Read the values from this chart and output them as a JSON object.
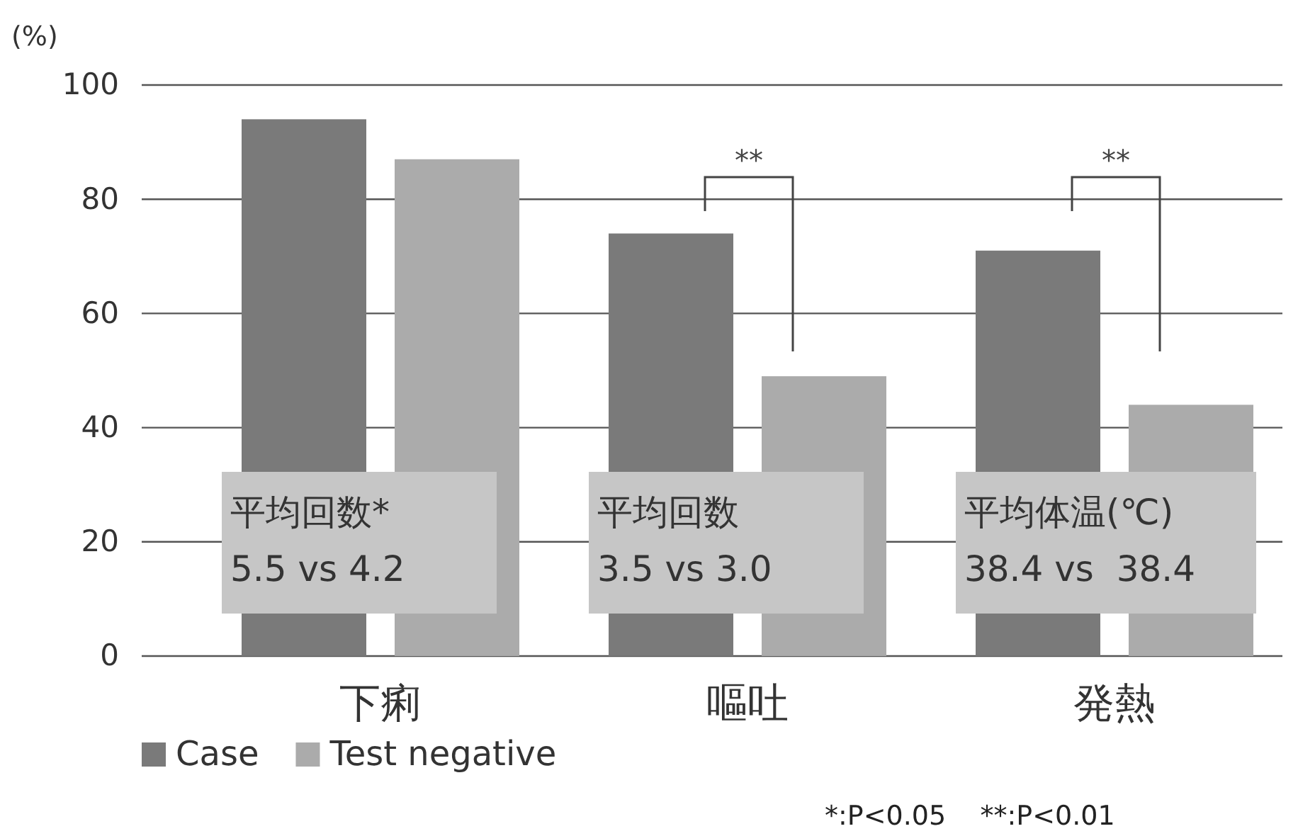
{
  "chart_data": {
    "type": "bar",
    "ylabel": "(%)",
    "categories": [
      "下痢",
      "嘔吐",
      "発熱"
    ],
    "series": [
      {
        "name": "Case",
        "color": "#7a7a7a",
        "values": [
          94,
          74,
          71
        ]
      },
      {
        "name": "Test negative",
        "color": "#ababab",
        "values": [
          87,
          49,
          44
        ]
      }
    ],
    "ylim": [
      0,
      100
    ],
    "yticks": [
      0,
      20,
      40,
      60,
      80,
      100
    ],
    "grid": "y",
    "legend": "bottom left",
    "annotations": [
      "平均回数*\n5.5 vs 4.2",
      "平均回数\n3.5 vs 3.0",
      "平均体温(℃)\n38.4 vs  38.4",
      "**",
      "**",
      "*:P<0.05    **:P<0.01"
    ]
  }
}
